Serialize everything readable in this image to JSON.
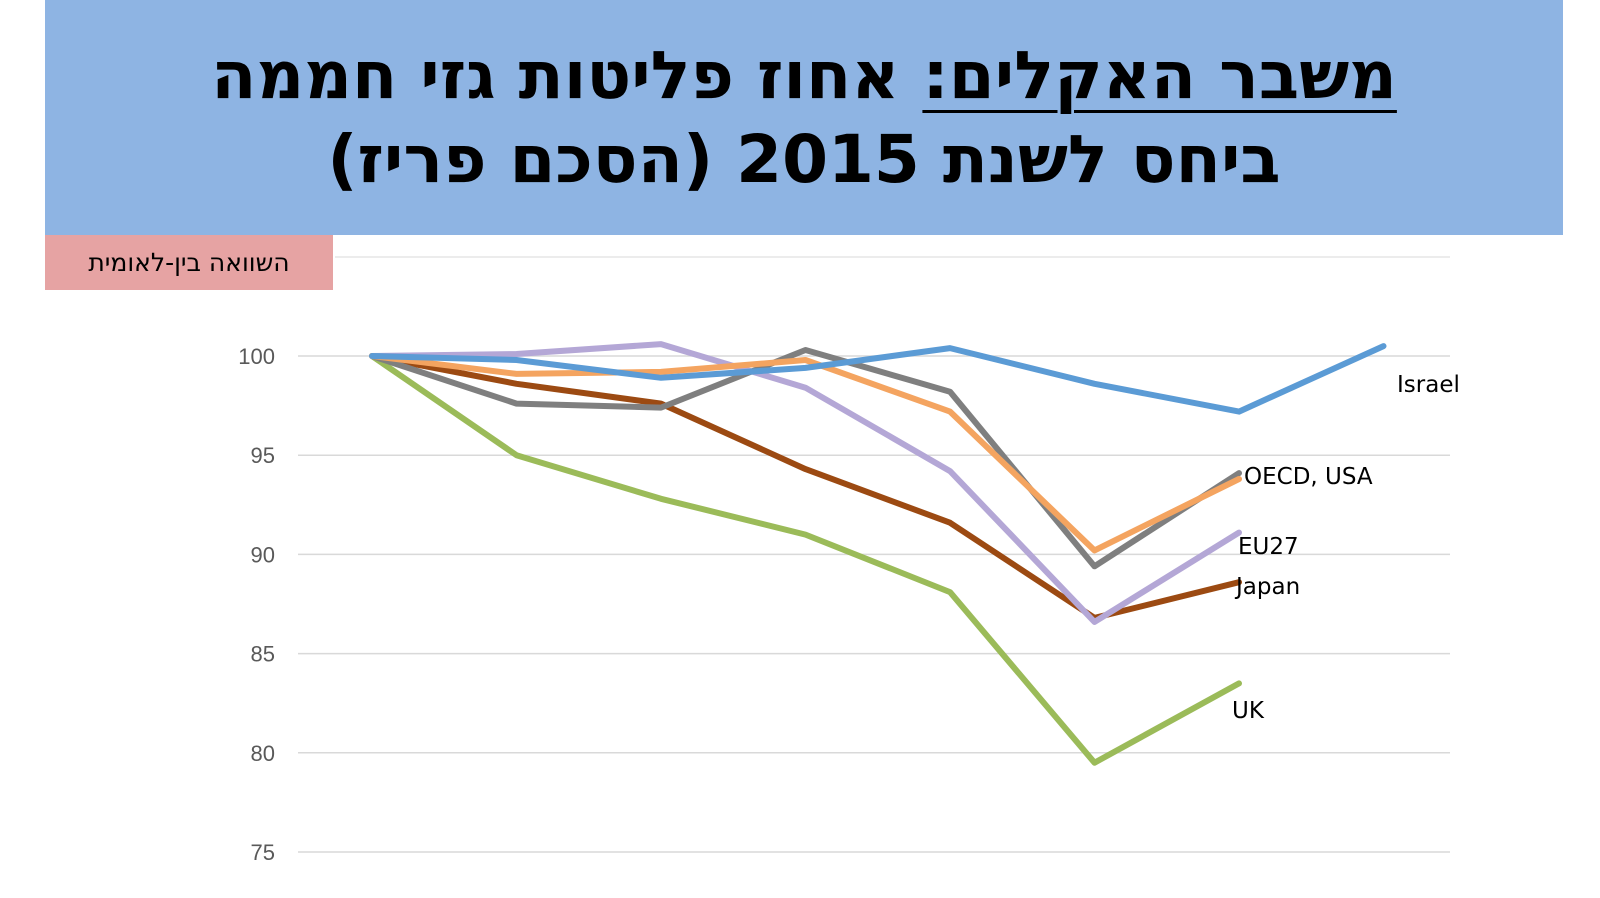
{
  "title": {
    "line1_underlined": "משבר האקלים:",
    "line1_rest": " אחוז פליטות גזי חממה",
    "line2": "ביחס לשנת 2015 (הסכם פריז)"
  },
  "subtitle_tag": "השוואה בין-לאומית",
  "colors": {
    "banner": "#8eb4e3",
    "tag": "#e6a3a3",
    "grid": "#d9d9d9",
    "axis_text": "#595959"
  },
  "chart_data": {
    "type": "line",
    "x": [
      0,
      1,
      2,
      3,
      4,
      5,
      6,
      7
    ],
    "ylim": [
      75,
      102
    ],
    "yticks": [
      100,
      95,
      90,
      85,
      80,
      75
    ],
    "grid": true,
    "xlabel": "",
    "ylabel": "",
    "series": [
      {
        "name": "Israel",
        "color": "#5b9bd5",
        "values": [
          100,
          99.8,
          98.9,
          99.4,
          100.4,
          98.6,
          97.2,
          100.5
        ]
      },
      {
        "name": "OECD, USA",
        "color": "#7f7f7f",
        "values": [
          100,
          97.6,
          97.4,
          100.3,
          98.2,
          89.4,
          94.1,
          null
        ]
      },
      {
        "name": "",
        "color": "#f4a460",
        "values": [
          100,
          99.1,
          99.2,
          99.8,
          97.2,
          90.2,
          93.8,
          null
        ]
      },
      {
        "name": "EU27",
        "color": "#b4a7d6",
        "values": [
          100,
          100.1,
          100.6,
          98.4,
          94.2,
          86.6,
          91.1,
          null
        ]
      },
      {
        "name": "Japan",
        "color": "#9c4a12",
        "values": [
          100,
          98.6,
          97.6,
          94.3,
          91.6,
          86.8,
          88.6,
          null
        ]
      },
      {
        "name": "UK",
        "color": "#9bbb59",
        "values": [
          100,
          95.0,
          92.8,
          91.0,
          88.1,
          79.5,
          83.5,
          null
        ]
      }
    ]
  }
}
